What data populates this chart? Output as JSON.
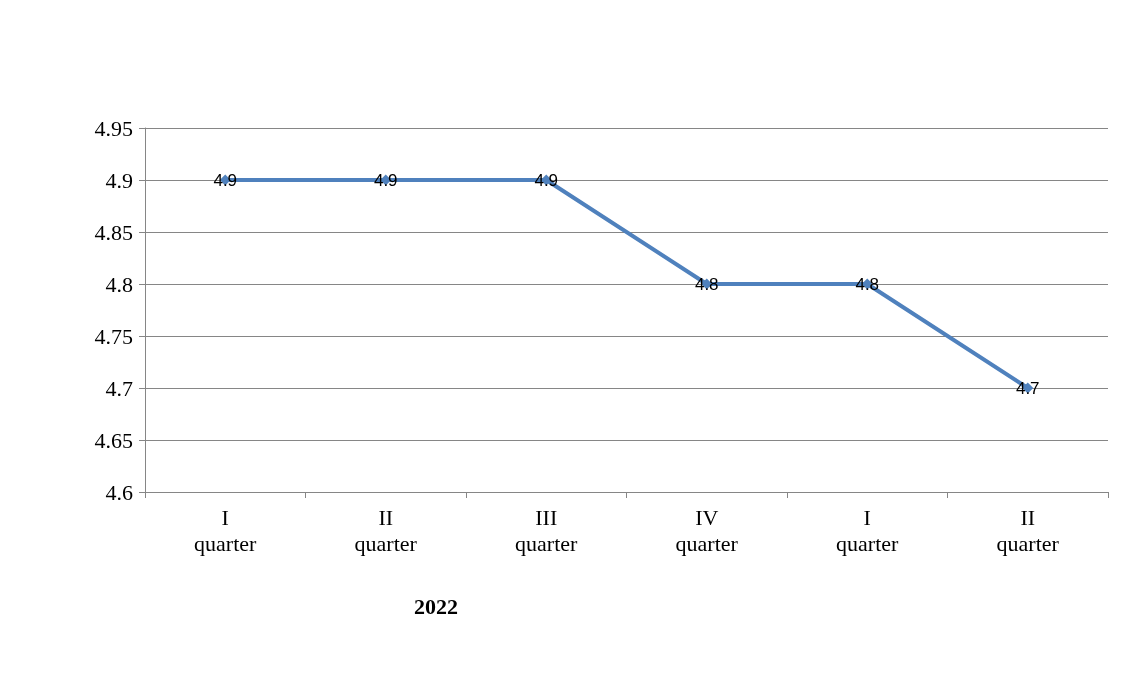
{
  "chart_data": {
    "type": "line",
    "categories": [
      "I quarter",
      "II quarter",
      "III quarter",
      "IV quarter",
      "I quarter",
      "II quarter"
    ],
    "series": [
      {
        "color": "#4f81bd",
        "values": [
          4.9,
          4.9,
          4.9,
          4.8,
          4.8,
          4.7
        ]
      }
    ],
    "ylim": [
      4.6,
      4.95
    ],
    "yticks": [
      4.6,
      4.65,
      4.7,
      4.75,
      4.8,
      4.85,
      4.9,
      4.95
    ],
    "grid": "y",
    "marker": "diamond",
    "line_style": "solid",
    "data_labels": true,
    "annotations": [
      "2022"
    ]
  }
}
